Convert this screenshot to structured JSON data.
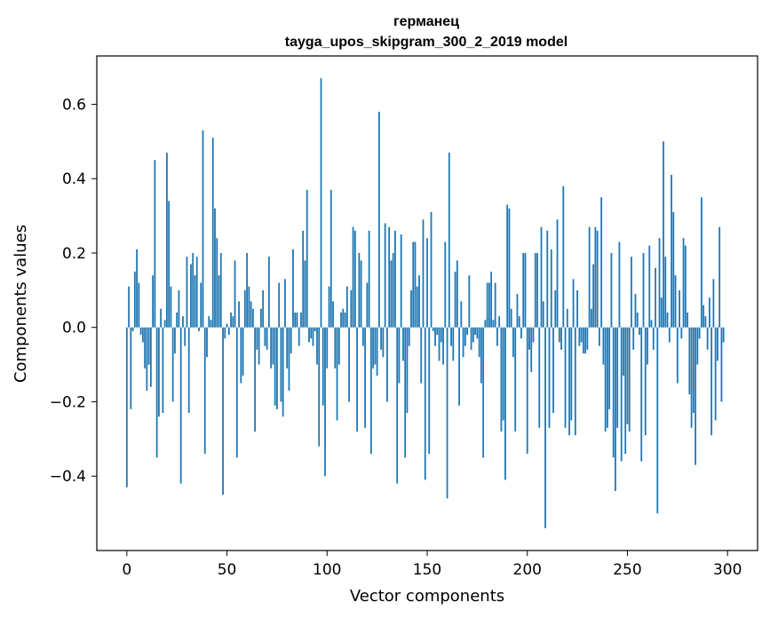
{
  "chart_data": {
    "type": "bar",
    "title_line1": "германец",
    "title_line2": "tayga_upos_skipgram_300_2_2019 model",
    "xlabel": "Vector components",
    "ylabel": "Components values",
    "xlim": [
      -15,
      315
    ],
    "ylim": [
      -0.6,
      0.73
    ],
    "x_ticks": [
      0,
      50,
      100,
      150,
      200,
      250,
      300
    ],
    "x_tick_labels": [
      "0",
      "50",
      "100",
      "150",
      "200",
      "250",
      "300"
    ],
    "y_ticks": [
      -0.4,
      -0.2,
      0.0,
      0.2,
      0.4,
      0.6
    ],
    "y_tick_labels": [
      "−0.4",
      "−0.2",
      "0.0",
      "0.2",
      "0.4",
      "0.6"
    ],
    "bar_color": "#1f77b4",
    "grid": false,
    "values": [
      -0.43,
      0.11,
      -0.22,
      -0.01,
      0.15,
      0.21,
      0.12,
      -0.02,
      -0.04,
      -0.11,
      -0.17,
      -0.1,
      -0.16,
      0.14,
      0.45,
      -0.35,
      -0.24,
      0.05,
      -0.23,
      0.02,
      0.47,
      0.34,
      0.11,
      -0.2,
      -0.07,
      0.04,
      0.1,
      -0.42,
      0.03,
      -0.05,
      0.19,
      -0.23,
      0.17,
      0.2,
      0.14,
      0.19,
      -0.01,
      0.12,
      0.53,
      -0.34,
      -0.08,
      0.03,
      0.02,
      0.51,
      0.32,
      0.24,
      0.14,
      0.2,
      -0.45,
      -0.03,
      0.01,
      -0.02,
      0.04,
      0.03,
      0.18,
      -0.35,
      0.07,
      -0.15,
      -0.13,
      0.1,
      0.2,
      0.11,
      0.07,
      0.05,
      -0.28,
      -0.06,
      -0.1,
      0.05,
      0.1,
      -0.05,
      -0.06,
      0.19,
      -0.11,
      -0.1,
      -0.21,
      -0.22,
      0.12,
      -0.2,
      -0.24,
      0.13,
      -0.11,
      -0.17,
      -0.07,
      0.21,
      0.04,
      0.04,
      -0.05,
      0.04,
      0.26,
      0.18,
      0.37,
      -0.04,
      -0.03,
      -0.05,
      -0.01,
      -0.1,
      -0.32,
      0.67,
      -0.21,
      -0.4,
      -0.11,
      0.11,
      0.37,
      0.07,
      -0.11,
      -0.25,
      -0.1,
      0.04,
      0.05,
      0.04,
      0.11,
      -0.2,
      0.1,
      0.27,
      0.26,
      -0.28,
      0.2,
      0.18,
      -0.05,
      -0.27,
      0.12,
      0.26,
      -0.34,
      -0.11,
      -0.1,
      -0.13,
      0.58,
      -0.06,
      -0.08,
      0.28,
      -0.2,
      0.27,
      0.18,
      0.2,
      0.26,
      -0.42,
      -0.15,
      0.25,
      -0.09,
      -0.35,
      -0.23,
      -0.05,
      0.1,
      0.23,
      0.23,
      0.11,
      0.14,
      -0.15,
      0.29,
      -0.41,
      0.24,
      -0.34,
      0.31,
      -0.01,
      -0.05,
      -0.02,
      -0.09,
      -0.04,
      -0.1,
      0.23,
      -0.46,
      0.47,
      -0.05,
      -0.09,
      0.15,
      0.18,
      -0.21,
      0.07,
      -0.08,
      -0.05,
      -0.02,
      0.14,
      -0.06,
      -0.04,
      -0.02,
      -0.03,
      -0.08,
      -0.15,
      -0.35,
      0.02,
      0.12,
      0.12,
      0.15,
      0.02,
      0.12,
      -0.05,
      0.03,
      -0.28,
      -0.25,
      -0.41,
      0.33,
      0.32,
      0.05,
      -0.08,
      -0.28,
      0.09,
      0.03,
      -0.03,
      0.2,
      0.2,
      -0.34,
      -0.06,
      -0.12,
      -0.04,
      0.2,
      0.2,
      -0.27,
      0.27,
      0.07,
      -0.54,
      0.26,
      -0.27,
      0.21,
      -0.23,
      0.1,
      0.29,
      -0.04,
      -0.06,
      0.38,
      -0.27,
      0.05,
      -0.29,
      -0.25,
      0.13,
      -0.29,
      0.1,
      -0.05,
      -0.04,
      -0.07,
      -0.07,
      -0.06,
      0.27,
      0.05,
      0.17,
      0.27,
      0.26,
      -0.05,
      0.35,
      -0.1,
      -0.28,
      -0.27,
      -0.22,
      0.2,
      -0.35,
      -0.44,
      -0.27,
      0.23,
      -0.36,
      -0.13,
      -0.34,
      -0.26,
      -0.28,
      0.19,
      -0.06,
      0.09,
      0.04,
      -0.02,
      -0.36,
      0.2,
      -0.29,
      -0.1,
      0.22,
      0.02,
      -0.06,
      0.16,
      -0.5,
      0.24,
      0.08,
      0.5,
      0.19,
      0.04,
      -0.04,
      0.41,
      0.31,
      0.14,
      -0.15,
      0.1,
      -0.03,
      0.24,
      0.22,
      0.04,
      -0.18,
      -0.27,
      -0.23,
      -0.37,
      -0.1,
      -0.03,
      0.35,
      0.06,
      0.03,
      -0.06,
      0.08,
      -0.29,
      0.13,
      -0.25,
      -0.09,
      0.27,
      -0.2,
      -0.04
    ]
  }
}
